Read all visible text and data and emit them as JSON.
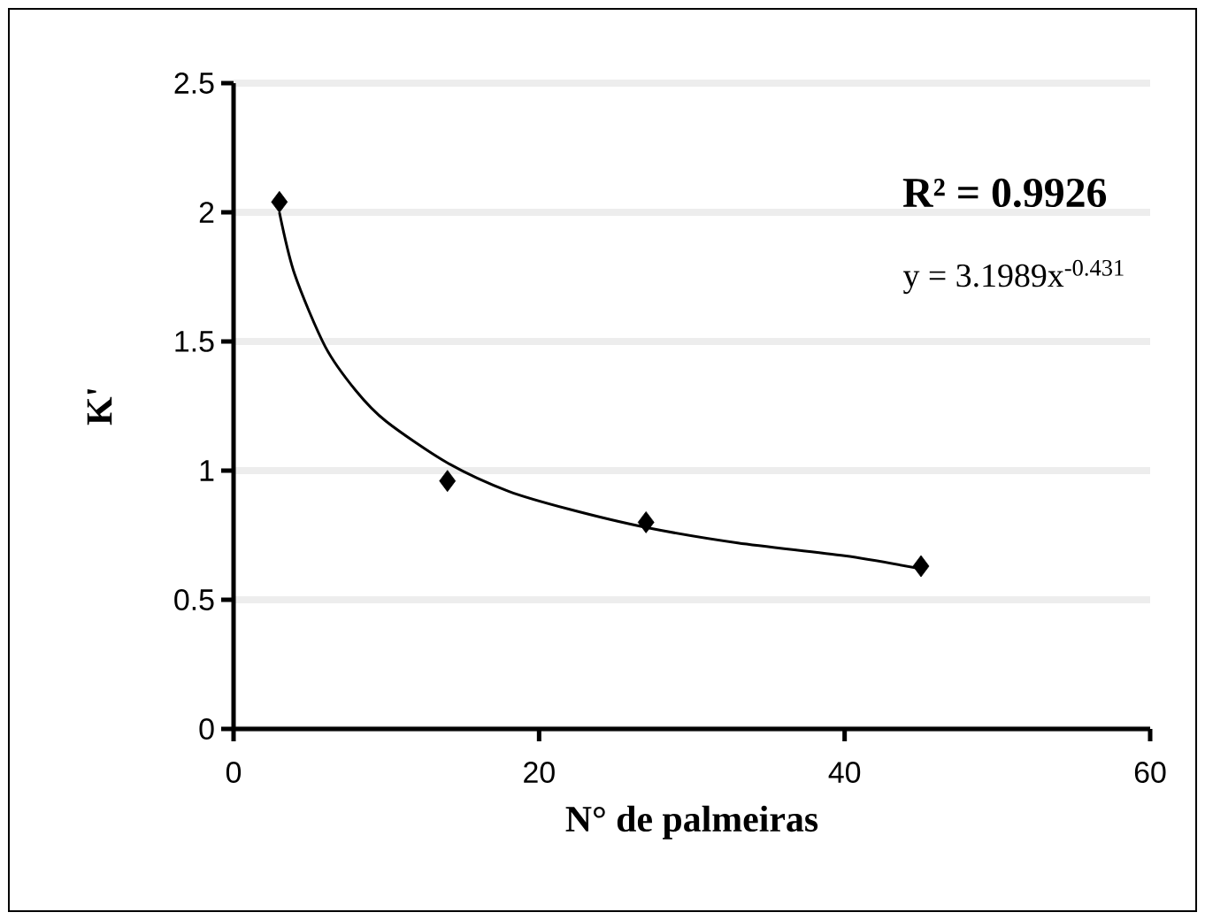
{
  "chart_data": {
    "type": "scatter",
    "xlabel": "N° de palmeiras",
    "ylabel": "K'",
    "xlim": [
      0,
      60
    ],
    "xticks": [
      0,
      20,
      40,
      60
    ],
    "ylim": [
      0,
      2.5
    ],
    "yticks": [
      0,
      0.5,
      1,
      1.5,
      2,
      2.5
    ],
    "grid": "y",
    "series": [
      {
        "color": "#000000",
        "marker": "diamond",
        "x": [
          3,
          14,
          27,
          45
        ],
        "values": [
          2.04,
          0.96,
          0.8,
          0.63
        ]
      },
      {
        "type": "line",
        "color": "#000000",
        "line_style": "solid",
        "x": [
          3,
          4,
          6,
          8,
          10,
          14,
          18,
          22,
          27,
          33,
          40,
          45
        ],
        "values": [
          2.0,
          1.76,
          1.48,
          1.31,
          1.19,
          1.03,
          0.92,
          0.85,
          0.78,
          0.72,
          0.67,
          0.62
        ]
      }
    ],
    "annotations": [
      "**R² = 0.9926**",
      "y = 3.1989x$^{-0.431}$"
    ]
  }
}
